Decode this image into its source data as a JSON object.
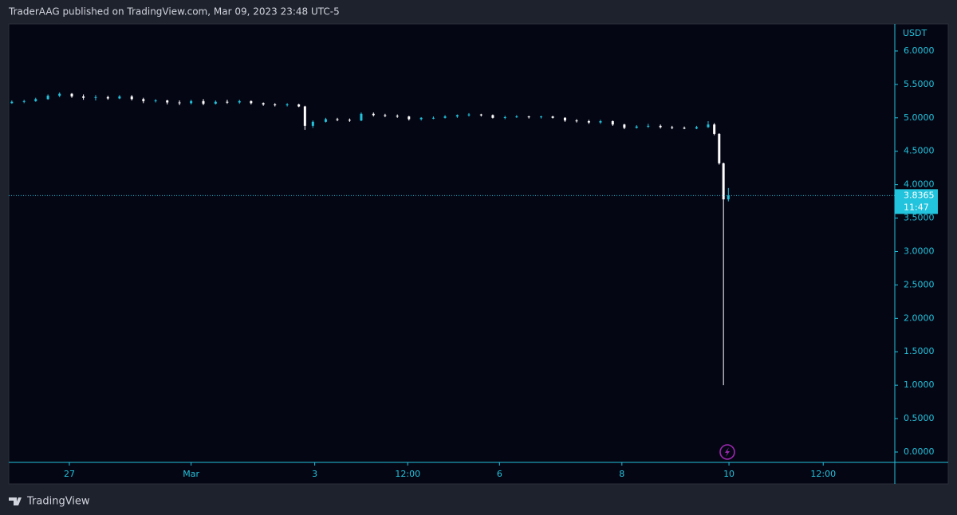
{
  "header": "TraderAAG published on TradingView.com, Mar 09, 2023 23:48 UTC-5",
  "footer": "TradingView",
  "chart_data": {
    "type": "candlestick",
    "axis_title": "USDT",
    "up_color": "#22c3dc",
    "down_color": "#ffffff",
    "x": [
      -0.94,
      -0.74,
      -0.55,
      -0.35,
      -0.16,
      0.04,
      0.23,
      0.43,
      0.63,
      0.82,
      1.02,
      1.21,
      1.41,
      1.6,
      1.8,
      1.99,
      2.19,
      2.39,
      2.58,
      2.78,
      2.97,
      3.17,
      3.36,
      3.56,
      3.75,
      3.85,
      3.98,
      4.19,
      4.38,
      4.58,
      4.77,
      4.97,
      5.16,
      5.36,
      5.55,
      5.75,
      5.95,
      6.14,
      6.34,
      6.53,
      6.73,
      6.92,
      7.12,
      7.31,
      7.51,
      7.71,
      7.9,
      8.1,
      8.29,
      8.49,
      8.68,
      8.88,
      9.07,
      9.27,
      9.46,
      9.66,
      9.85,
      10.05,
      10.25,
      10.44,
      10.54,
      10.62,
      10.69,
      10.77
    ],
    "open": [
      5.22,
      5.24,
      5.25,
      5.28,
      5.33,
      5.36,
      5.32,
      5.3,
      5.31,
      5.29,
      5.32,
      5.28,
      5.25,
      5.26,
      5.23,
      5.22,
      5.25,
      5.21,
      5.24,
      5.23,
      5.25,
      5.22,
      5.2,
      5.19,
      5.2,
      5.17,
      4.88,
      4.94,
      4.98,
      4.97,
      4.96,
      5.06,
      5.04,
      5.03,
      5.02,
      4.98,
      5.0,
      5.0,
      5.02,
      5.04,
      5.05,
      5.04,
      5.0,
      5.01,
      5.02,
      5.01,
      5.02,
      5.0,
      4.96,
      4.95,
      4.93,
      4.95,
      4.9,
      4.85,
      4.87,
      4.88,
      4.86,
      4.85,
      4.84,
      4.86,
      4.9,
      4.76,
      4.32,
      3.78
    ],
    "high": [
      5.26,
      5.27,
      5.3,
      5.35,
      5.38,
      5.37,
      5.35,
      5.34,
      5.33,
      5.34,
      5.34,
      5.3,
      5.28,
      5.27,
      5.26,
      5.27,
      5.28,
      5.26,
      5.27,
      5.27,
      5.26,
      5.23,
      5.22,
      5.22,
      5.21,
      5.18,
      4.96,
      5.0,
      5.0,
      4.99,
      5.08,
      5.08,
      5.06,
      5.05,
      5.03,
      5.01,
      5.02,
      5.04,
      5.05,
      5.07,
      5.06,
      5.05,
      5.03,
      5.04,
      5.03,
      5.03,
      5.03,
      5.01,
      4.98,
      4.97,
      4.97,
      4.96,
      4.91,
      4.89,
      4.91,
      4.9,
      4.88,
      4.87,
      4.88,
      4.95,
      4.92,
      4.77,
      4.33,
      3.95
    ],
    "low": [
      5.21,
      5.22,
      5.24,
      5.27,
      5.31,
      5.3,
      5.27,
      5.26,
      5.27,
      5.28,
      5.26,
      5.22,
      5.23,
      5.2,
      5.19,
      5.2,
      5.19,
      5.2,
      5.21,
      5.21,
      5.2,
      5.18,
      5.17,
      5.17,
      5.16,
      4.82,
      4.85,
      4.93,
      4.95,
      4.94,
      4.95,
      5.02,
      5.01,
      5.0,
      4.96,
      4.96,
      4.98,
      4.99,
      5.0,
      5.02,
      5.02,
      4.99,
      4.98,
      5.0,
      4.99,
      4.99,
      4.99,
      4.94,
      4.93,
      4.91,
      4.91,
      4.88,
      4.83,
      4.84,
      4.85,
      4.84,
      4.83,
      4.83,
      4.83,
      4.85,
      4.74,
      4.3,
      1.0,
      3.75
    ],
    "close": [
      5.24,
      5.25,
      5.28,
      5.33,
      5.36,
      5.32,
      5.3,
      5.31,
      5.29,
      5.32,
      5.28,
      5.25,
      5.26,
      5.23,
      5.22,
      5.25,
      5.21,
      5.24,
      5.23,
      5.25,
      5.22,
      5.2,
      5.19,
      5.2,
      5.17,
      4.88,
      4.94,
      4.98,
      4.97,
      4.96,
      5.06,
      5.04,
      5.03,
      5.02,
      4.98,
      5.0,
      5.0,
      5.02,
      5.04,
      5.05,
      5.04,
      5.0,
      5.01,
      5.02,
      5.01,
      5.02,
      5.0,
      4.96,
      4.95,
      4.93,
      4.95,
      4.9,
      4.85,
      4.87,
      4.88,
      4.86,
      4.85,
      4.84,
      4.86,
      4.9,
      4.76,
      4.32,
      3.78,
      3.8365
    ],
    "countdown": "11:47",
    "xlim": [
      -0.99,
      13.49
    ],
    "ylim": [
      -0.155,
      6.405
    ],
    "xticks": [
      {
        "value": 0,
        "label": "27"
      },
      {
        "value": 1.99,
        "label": "Mar"
      },
      {
        "value": 4.01,
        "label": "3"
      },
      {
        "value": 5.53,
        "label": "12:00"
      },
      {
        "value": 7.03,
        "label": "6"
      },
      {
        "value": 9.03,
        "label": "8"
      },
      {
        "value": 10.78,
        "label": "10"
      },
      {
        "value": 12.32,
        "label": "12:00"
      }
    ],
    "yticks": [
      {
        "value": 0,
        "label": "0.0000"
      },
      {
        "value": 0.5,
        "label": "0.5000"
      },
      {
        "value": 1,
        "label": "1.0000"
      },
      {
        "value": 1.5,
        "label": "1.5000"
      },
      {
        "value": 2,
        "label": "2.0000"
      },
      {
        "value": 2.5,
        "label": "2.5000"
      },
      {
        "value": 3,
        "label": "3.0000"
      },
      {
        "value": 3.5,
        "label": "3.5000"
      },
      {
        "value": 4,
        "label": "4.0000"
      },
      {
        "value": 4.5,
        "label": "4.5000"
      },
      {
        "value": 5,
        "label": "5.0000"
      },
      {
        "value": 5.5,
        "label": "5.5000"
      },
      {
        "value": 6,
        "label": "6.0000"
      }
    ]
  }
}
